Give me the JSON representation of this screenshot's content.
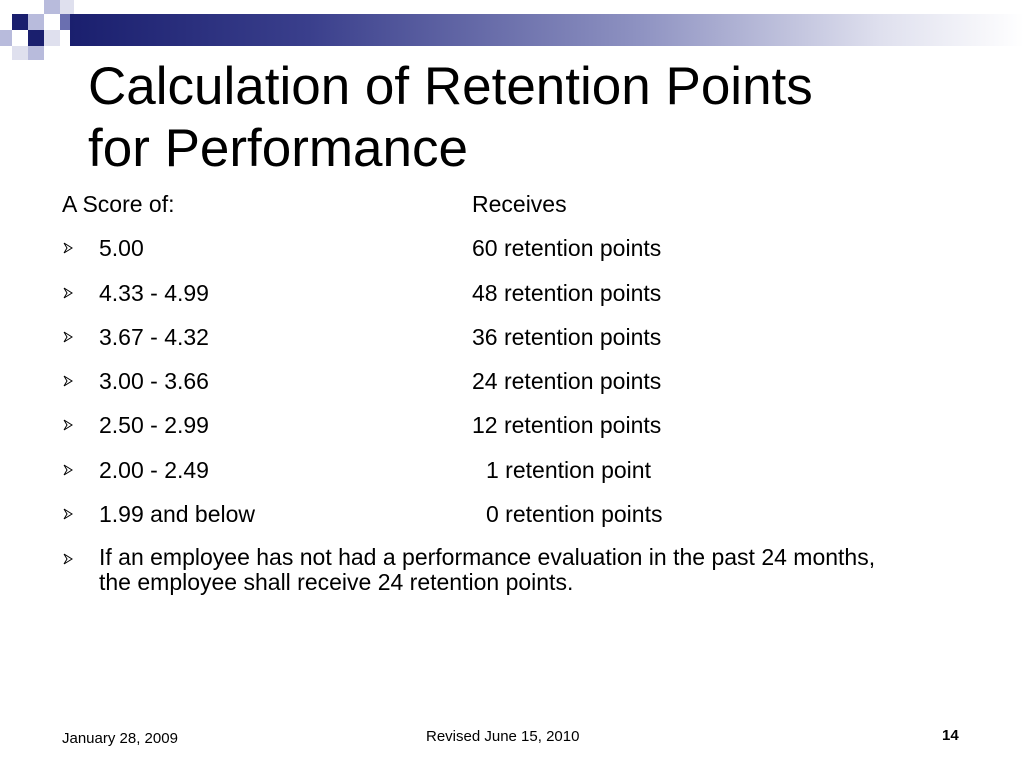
{
  "title": {
    "line1": "Calculation of Retention Points",
    "line2": "for Performance"
  },
  "header": {
    "score_label": "A Score of:",
    "receives_label": "Receives"
  },
  "rows": [
    {
      "score": "5.00",
      "points": "60 retention points"
    },
    {
      "score": "4.33 - 4.99",
      "points": "48 retention points"
    },
    {
      "score": "3.67 - 4.32",
      "points": "36 retention points"
    },
    {
      "score": "3.00 - 3.66",
      "points": "24 retention points"
    },
    {
      "score": "2.50 - 2.99",
      "points": "12 retention points"
    },
    {
      "score": "2.00 - 2.49",
      "points": "1 retention point"
    },
    {
      "score": "1.99 and below",
      "points": "0 retention points"
    }
  ],
  "note": "If an employee has not had a performance evaluation in the past 24 months, the employee shall receive 24 retention points.",
  "footer": {
    "date": "January 28, 2009",
    "revised": "Revised June 15, 2010",
    "page": "14"
  },
  "colors": {
    "accent_dark": "#1a1f6e",
    "accent_mid": "#6a6fb0",
    "accent_light": "#b8bbdc"
  },
  "icons": {
    "bullet": "arrow-bullet-icon",
    "logo": "square-pattern-icon"
  }
}
